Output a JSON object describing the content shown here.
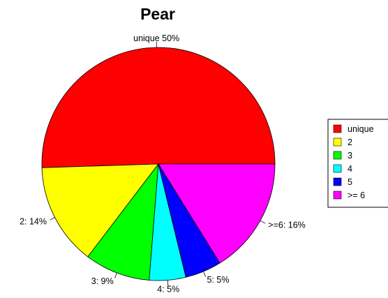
{
  "chart_data": {
    "type": "pie",
    "title": "Pear",
    "slices": [
      {
        "category": "unique",
        "value": 50,
        "label": "unique 50%",
        "color": "#ff0000"
      },
      {
        "category": "2",
        "value": 14,
        "label": "2: 14%",
        "color": "#ffff00"
      },
      {
        "category": "3",
        "value": 9,
        "label": "3: 9%",
        "color": "#00ff00"
      },
      {
        "category": "4",
        "value": 5,
        "label": "4: 5%",
        "color": "#00ffff"
      },
      {
        "category": "5",
        "value": 5,
        "label": "5: 5%",
        "color": "#0000ff"
      },
      {
        "category": ">= 6",
        "value": 16,
        "label": ">=6: 16%",
        "color": "#ff00ff"
      }
    ],
    "legend": {
      "position": "right",
      "entries": [
        "unique",
        "2",
        "3",
        "4",
        "5",
        ">= 6"
      ]
    }
  }
}
